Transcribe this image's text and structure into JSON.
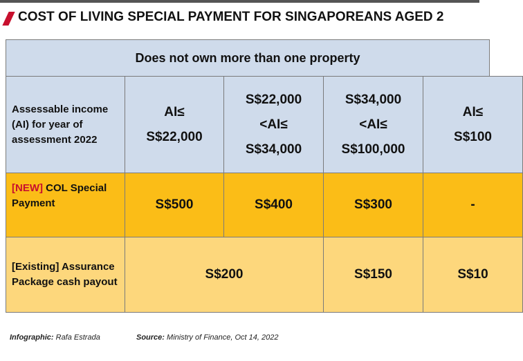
{
  "title": "COST OF LIVING SPECIAL PAYMENT FOR SINGAPOREANS AGED 2",
  "table": {
    "group_header": "Does not own more than one property",
    "header_row": {
      "label": "Assessable income (AI) for year of assessment 2022",
      "cells": [
        "AI≤\nS$22,000",
        "S$22,000\n<AI≤\nS$34,000",
        "S$34,000\n<AI≤\nS$100,000",
        "AI≤\nS$100"
      ]
    },
    "new_row": {
      "tag": "[NEW]",
      "label": "COL Special Payment",
      "cells": [
        "S$500",
        "S$400",
        "S$300",
        "-"
      ]
    },
    "existing_row": {
      "label": "[Existing] Assurance Package cash payout",
      "cells": [
        "S$200",
        "S$150",
        "S$10"
      ]
    }
  },
  "footer": {
    "credit_label": "Infographic:",
    "credit": "Rafa Estrada",
    "source_label": "Source:",
    "source": "Ministry of Finance, Oct 14, 2022"
  }
}
